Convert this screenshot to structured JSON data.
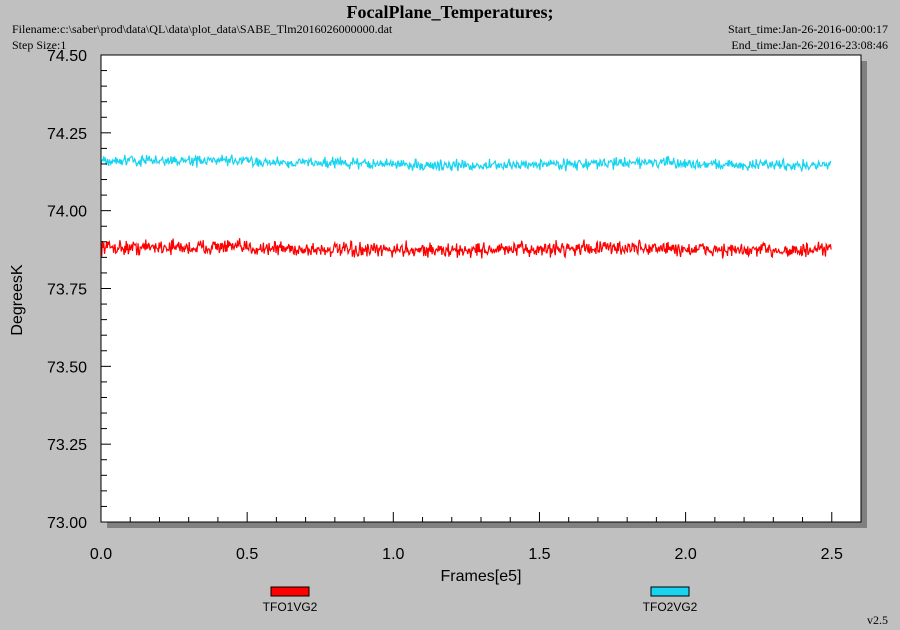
{
  "header": {
    "title": "FocalPlane_Temperatures;",
    "filename": "Filename:c:\\saber\\prod\\data\\QL\\data\\plot_data\\SABE_Tlm2016026000000.dat",
    "step_size": "Step Size:1",
    "start_time": "Start_time:Jan-26-2016-00:00:17",
    "end_time": "End_time:Jan-26-2016-23:08:46"
  },
  "version": "v2.5",
  "chart_data": {
    "type": "line",
    "xlabel": "Frames[e5]",
    "ylabel": "DegreesK",
    "xlim": [
      0.0,
      2.6
    ],
    "ylim": [
      73.0,
      74.5
    ],
    "xticks": [
      "0.0",
      "0.5",
      "1.0",
      "1.5",
      "2.0",
      "2.5"
    ],
    "yticks": [
      "73.00",
      "73.25",
      "73.50",
      "73.75",
      "74.00",
      "74.25",
      "74.50"
    ],
    "legend_position": "bottom",
    "series": [
      {
        "name": "TFO1VG2",
        "color": "#ff0000",
        "x": [
          0.0,
          0.1,
          0.2,
          0.3,
          0.4,
          0.5,
          0.6,
          0.7,
          0.8,
          0.9,
          1.0,
          1.1,
          1.2,
          1.3,
          1.4,
          1.5,
          1.6,
          1.7,
          1.8,
          1.9,
          2.0,
          2.1,
          2.2,
          2.3,
          2.4,
          2.5
        ],
        "y": [
          73.885,
          73.88,
          73.885,
          73.88,
          73.885,
          73.88,
          73.88,
          73.875,
          73.875,
          73.87,
          73.875,
          73.875,
          73.87,
          73.875,
          73.875,
          73.875,
          73.88,
          73.88,
          73.88,
          73.88,
          73.875,
          73.875,
          73.87,
          73.875,
          73.87,
          73.875
        ],
        "band": 0.035
      },
      {
        "name": "TFO2VG2",
        "color": "#17d4f0",
        "x": [
          0.0,
          0.1,
          0.2,
          0.3,
          0.4,
          0.5,
          0.6,
          0.7,
          0.8,
          0.9,
          1.0,
          1.1,
          1.2,
          1.3,
          1.4,
          1.5,
          1.6,
          1.7,
          1.8,
          1.9,
          2.0,
          2.1,
          2.2,
          2.3,
          2.4,
          2.5
        ],
        "y": [
          74.16,
          74.16,
          74.16,
          74.16,
          74.16,
          74.16,
          74.155,
          74.155,
          74.155,
          74.15,
          74.15,
          74.145,
          74.145,
          74.145,
          74.145,
          74.15,
          74.15,
          74.15,
          74.155,
          74.155,
          74.15,
          74.15,
          74.145,
          74.15,
          74.145,
          74.145
        ],
        "band": 0.025
      }
    ]
  }
}
